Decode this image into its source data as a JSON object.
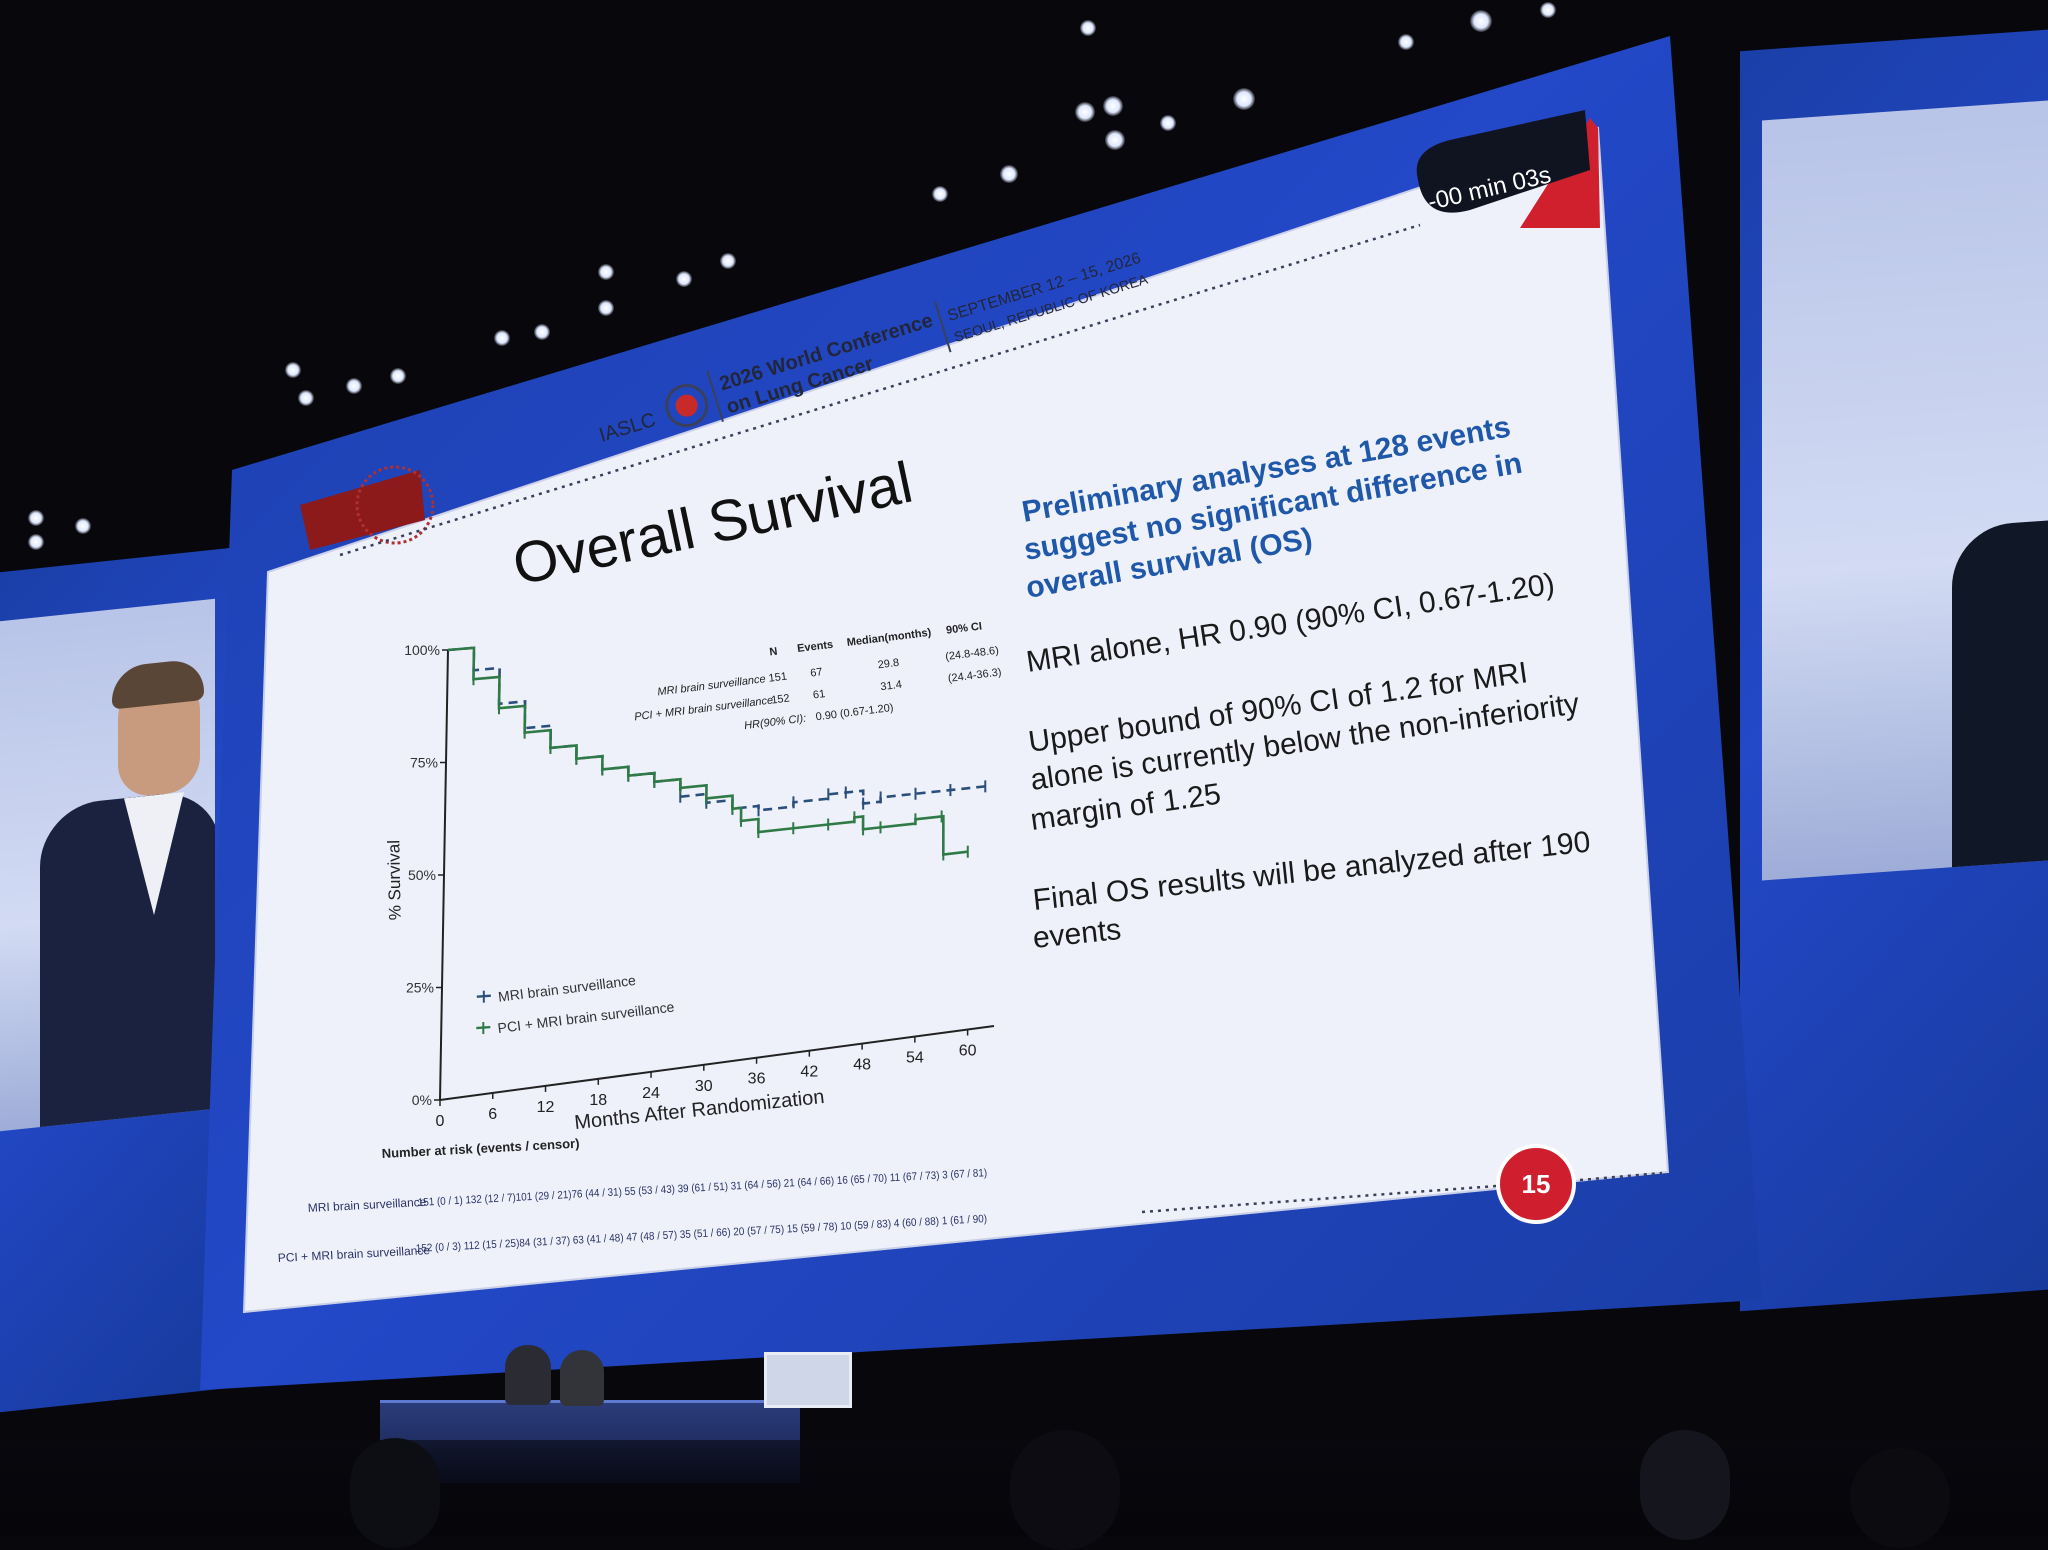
{
  "slide": {
    "timer": "-00 min 03s",
    "logo_left": "IASLC",
    "conference_name_1": "2026 World Conference",
    "conference_name_2": "on Lung Cancer",
    "conference_dates": "SEPTEMBER 12 – 15, 2026",
    "conference_location": "SEOUL, REPUBLIC OF KOREA",
    "title": "Overall Survival",
    "highlight": [
      "Preliminary analyses at 128 events",
      "suggest no significant difference in",
      "overall survival (OS)"
    ],
    "bullet1": "MRI alone, HR 0.90 (90% CI, 0.67-1.20)",
    "bullet2": [
      "Upper bound of 90% CI of 1.2 for MRI",
      "alone is currently below the non-inferiority",
      "margin of 1.25"
    ],
    "bullet3": [
      "Final OS results will be analyzed after 190",
      "events"
    ],
    "page_number": "15"
  },
  "km_table": {
    "headers": [
      "N",
      "Events",
      "Median(months)",
      "90% CI"
    ],
    "rows": [
      {
        "label": "MRI brain surveillance",
        "n": "151",
        "events": "67",
        "median": "29.8",
        "ci": "(24.8-48.6)"
      },
      {
        "label": "PCI + MRI brain surveillance",
        "n": "152",
        "events": "61",
        "median": "31.4",
        "ci": "(24.4-36.3)"
      }
    ],
    "hr_label": "HR(90% CI):",
    "hr_value": "0.90 (0.67-1.20)"
  },
  "chart_data": {
    "type": "line",
    "xlabel": "Months After Randomization",
    "ylabel": "% Survival",
    "x_ticks": [
      "0",
      "6",
      "12",
      "18",
      "24",
      "30",
      "36",
      "42",
      "48",
      "54",
      "60"
    ],
    "y_ticks": [
      "0%",
      "25%",
      "50%",
      "75%",
      "100%"
    ],
    "xlim": [
      0,
      63
    ],
    "ylim": [
      0,
      100
    ],
    "series": [
      {
        "name": "MRI brain surveillance",
        "color": "#2a4f7a",
        "dashed": true,
        "x": [
          0,
          3,
          6,
          9,
          12,
          15,
          18,
          21,
          24,
          27,
          30,
          33,
          36,
          40,
          44,
          46,
          48,
          50,
          54,
          58,
          62
        ],
        "y": [
          100,
          95,
          87,
          81,
          76,
          73,
          70,
          68,
          66,
          62,
          60,
          58,
          57,
          58,
          59,
          59,
          56,
          57,
          57,
          57,
          57
        ]
      },
      {
        "name": "PCI + MRI brain surveillance",
        "color": "#2f7a46",
        "dashed": false,
        "x": [
          0,
          3,
          6,
          9,
          12,
          15,
          18,
          21,
          24,
          27,
          30,
          33,
          34,
          36,
          40,
          44,
          47,
          48,
          50,
          54,
          57,
          57.2,
          60
        ],
        "y": [
          100,
          93,
          86,
          80,
          76,
          73,
          70,
          68,
          66,
          64,
          61,
          58,
          55,
          52,
          52,
          52,
          53,
          50,
          50,
          51,
          51,
          42,
          42
        ]
      }
    ]
  },
  "risk_table": {
    "title": "Number at risk (events / censor)",
    "rows": [
      {
        "label": "MRI brain surveillance",
        "values": "151 (0 / 1)   132 (12 / 7)101 (29 / 21)76 (44 / 31) 55 (53 / 43) 39 (61 / 51) 31 (64 / 56) 21 (64 / 66) 16 (65 / 70) 11 (67 / 73)   3 (67 / 81)"
      },
      {
        "label": "PCI + MRI brain surveillance",
        "values": "152 (0 / 3) 112 (15 / 25)84 (31 / 37) 63 (41 / 48) 47 (48 / 57) 35 (51 / 66) 20 (57 / 75) 15 (59 / 78) 10 (59 / 83)   4 (60 / 88)   1 (61 / 90)"
      }
    ]
  }
}
